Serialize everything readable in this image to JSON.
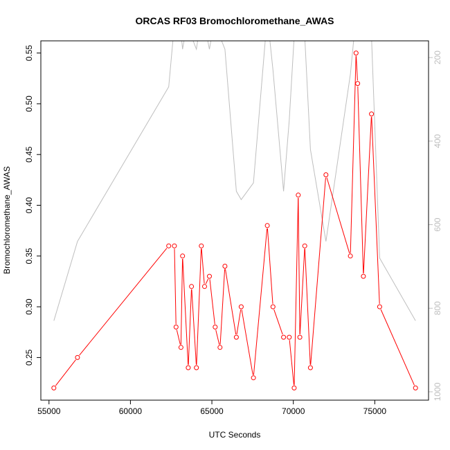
{
  "chart_data": {
    "type": "line",
    "title": "ORCAS RF03 Bromochloromethane_AWAS",
    "xlabel": "UTC Seconds",
    "ylabel": "Bromochloromethane_AWAS",
    "xlim": [
      54500,
      78300
    ],
    "ylim": [
      0.208,
      0.562
    ],
    "y2lim": [
      1020,
      160
    ],
    "y2_reversed": true,
    "x_ticks": [
      55000,
      60000,
      65000,
      70000,
      75000
    ],
    "x_tick_labels": [
      "55000",
      "60000",
      "65000",
      "70000",
      "75000"
    ],
    "y_ticks": [
      0.25,
      0.3,
      0.35,
      0.4,
      0.45,
      0.5,
      0.55
    ],
    "y_tick_labels": [
      "0.25",
      "0.30",
      "0.35",
      "0.40",
      "0.45",
      "0.50",
      "0.55"
    ],
    "y2_ticks": [
      200,
      400,
      600,
      800,
      1000
    ],
    "y2_tick_labels": [
      "200",
      "400",
      "600",
      "800",
      "1000"
    ],
    "grid": false,
    "legend": "none",
    "colors": {
      "primary": "#ff0000",
      "secondary": "#bebebe",
      "axis": "#000000"
    },
    "series": [
      {
        "values_axis": "left",
        "x": [
          55300,
          56750,
          62350,
          62700,
          62800,
          63100,
          63200,
          63550,
          63750,
          64050,
          64350,
          64550,
          64850,
          65200,
          65500,
          65800,
          66500,
          66800,
          67550,
          68400,
          68750,
          69400,
          69750,
          70050,
          70300,
          70400,
          70700,
          71050,
          72000,
          73500,
          73850,
          73950,
          74300,
          74800,
          75300,
          77500
        ],
        "y": [
          0.22,
          0.25,
          0.36,
          0.36,
          0.28,
          0.26,
          0.35,
          0.24,
          0.32,
          0.24,
          0.36,
          0.32,
          0.33,
          0.28,
          0.26,
          0.34,
          0.27,
          0.3,
          0.23,
          0.38,
          0.3,
          0.27,
          0.27,
          0.22,
          0.41,
          0.27,
          0.36,
          0.24,
          0.43,
          0.35,
          0.55,
          0.52,
          0.33,
          0.49,
          0.3,
          0.22
        ]
      },
      {
        "values_axis": "right",
        "x": [
          55300,
          56750,
          62350,
          62700,
          62800,
          63100,
          63200,
          63550,
          63750,
          64050,
          64350,
          64550,
          64850,
          65200,
          65500,
          65800,
          66500,
          66800,
          67550,
          68400,
          68750,
          69400,
          69750,
          70050,
          70300,
          70400,
          70700,
          71050,
          72000,
          73500,
          73850,
          73950,
          74300,
          74800,
          75300,
          77500
        ],
        "y": [
          830,
          640,
          270,
          120,
          100,
          140,
          180,
          100,
          150,
          180,
          100,
          120,
          180,
          100,
          150,
          180,
          520,
          540,
          500,
          100,
          230,
          520,
          350,
          150,
          100,
          120,
          150,
          420,
          640,
          240,
          100,
          100,
          100,
          150,
          680,
          830
        ]
      }
    ]
  }
}
